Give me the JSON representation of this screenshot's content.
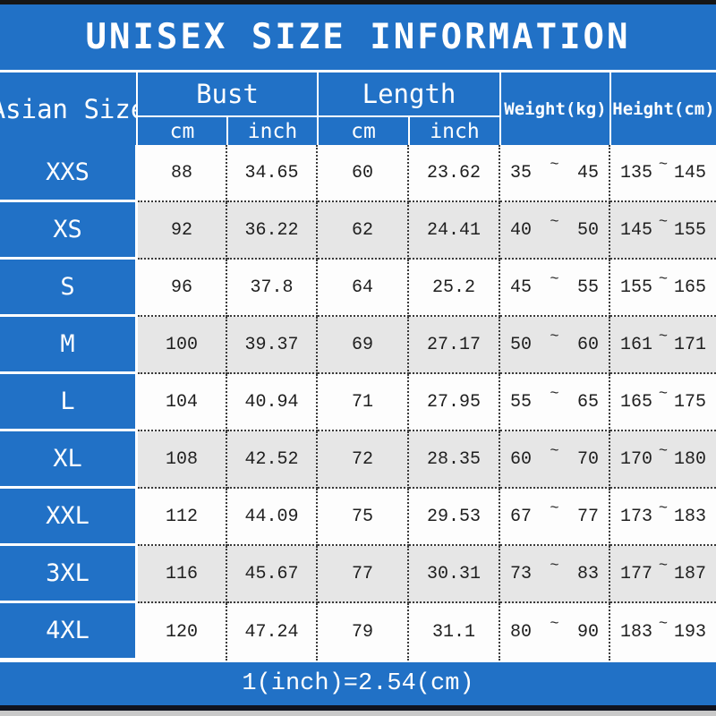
{
  "title": "UNISEX SIZE INFORMATION",
  "colors": {
    "accent_blue": "#2171c6",
    "stripe_gray": "#e6e6e6",
    "top_bar": "#161616",
    "bottom_bar_black": "#10131f",
    "bottom_bar_gray": "#c9c9c9",
    "text_on_blue": "#ffffff",
    "cell_text": "#1f1f1f"
  },
  "table": {
    "corner_label": "Asian Size",
    "groups": [
      {
        "label": "Bust",
        "sub": [
          "cm",
          "inch"
        ]
      },
      {
        "label": "Length",
        "sub": [
          "cm",
          "inch"
        ]
      }
    ],
    "weight_label": "Weight(kg)",
    "height_label": "Height(cm)",
    "tilde": "~",
    "rows": [
      {
        "size": "XXS",
        "bust_cm": "88",
        "bust_inch": "34.65",
        "length_cm": "60",
        "length_inch": "23.62",
        "weight_min": "35",
        "weight_max": "45",
        "height_min": "135",
        "height_max": "145"
      },
      {
        "size": "XS",
        "bust_cm": "92",
        "bust_inch": "36.22",
        "length_cm": "62",
        "length_inch": "24.41",
        "weight_min": "40",
        "weight_max": "50",
        "height_min": "145",
        "height_max": "155"
      },
      {
        "size": "S",
        "bust_cm": "96",
        "bust_inch": "37.8",
        "length_cm": "64",
        "length_inch": "25.2",
        "weight_min": "45",
        "weight_max": "55",
        "height_min": "155",
        "height_max": "165"
      },
      {
        "size": "M",
        "bust_cm": "100",
        "bust_inch": "39.37",
        "length_cm": "69",
        "length_inch": "27.17",
        "weight_min": "50",
        "weight_max": "60",
        "height_min": "161",
        "height_max": "171"
      },
      {
        "size": "L",
        "bust_cm": "104",
        "bust_inch": "40.94",
        "length_cm": "71",
        "length_inch": "27.95",
        "weight_min": "55",
        "weight_max": "65",
        "height_min": "165",
        "height_max": "175"
      },
      {
        "size": "XL",
        "bust_cm": "108",
        "bust_inch": "42.52",
        "length_cm": "72",
        "length_inch": "28.35",
        "weight_min": "60",
        "weight_max": "70",
        "height_min": "170",
        "height_max": "180"
      },
      {
        "size": "XXL",
        "bust_cm": "112",
        "bust_inch": "44.09",
        "length_cm": "75",
        "length_inch": "29.53",
        "weight_min": "67",
        "weight_max": "77",
        "height_min": "173",
        "height_max": "183"
      },
      {
        "size": "3XL",
        "bust_cm": "116",
        "bust_inch": "45.67",
        "length_cm": "77",
        "length_inch": "30.31",
        "weight_min": "73",
        "weight_max": "83",
        "height_min": "177",
        "height_max": "187"
      },
      {
        "size": "4XL",
        "bust_cm": "120",
        "bust_inch": "47.24",
        "length_cm": "79",
        "length_inch": "31.1",
        "weight_min": "80",
        "weight_max": "90",
        "height_min": "183",
        "height_max": "193"
      }
    ]
  },
  "footer": {
    "note": "1(inch)=2.54(cm)"
  }
}
